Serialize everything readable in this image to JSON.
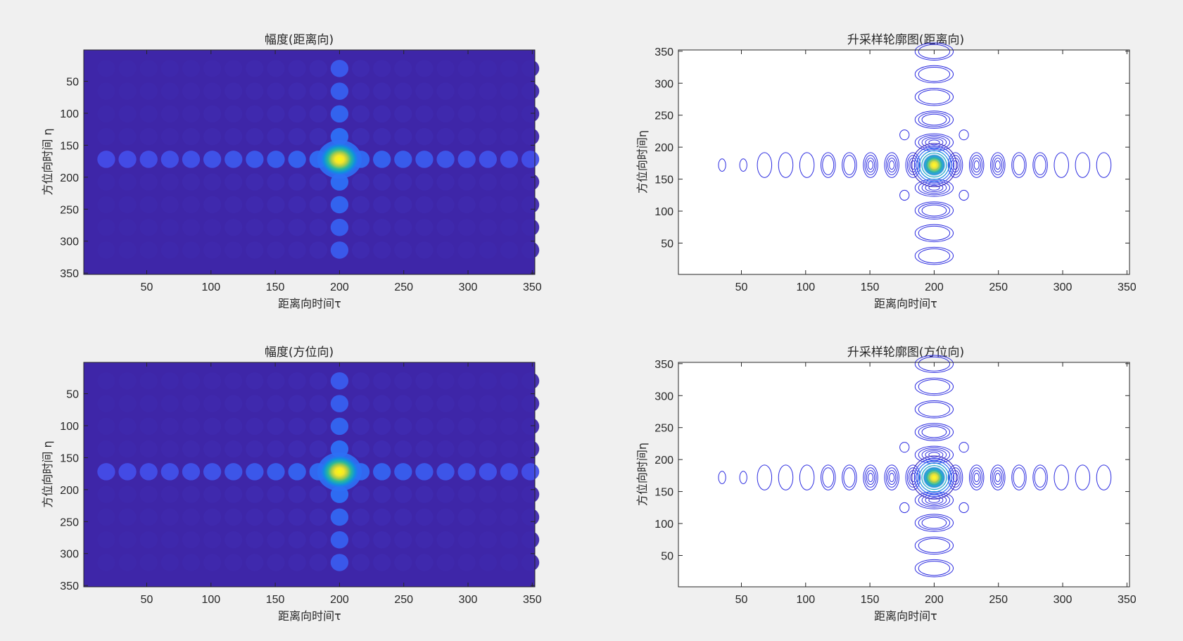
{
  "figure": {
    "background": "#f0f0f0",
    "colormap": "parula",
    "contour_color": "#2c2ce0"
  },
  "chart_data": [
    {
      "type": "heatmap",
      "title": "幅度(距离向)",
      "xlabel": "距离向时间τ",
      "ylabel": "方位向时间 η",
      "xlim": [
        1,
        352
      ],
      "ylim": [
        352,
        1
      ],
      "y_direction": "reverse",
      "xticks": [
        50,
        100,
        150,
        200,
        250,
        300,
        350
      ],
      "yticks": [
        50,
        100,
        150,
        200,
        250,
        300,
        350
      ],
      "grid": false,
      "peak": {
        "x": 200,
        "y": 172
      },
      "sidelobe_spacing": {
        "x": 16.5,
        "y": 35.5
      },
      "mainlobe_width": {
        "x": 10,
        "y": 16
      }
    },
    {
      "type": "contour",
      "title": "升采样轮廓图(距离向)",
      "xlabel": "距离向时间τ",
      "ylabel": "方位向时间η",
      "xlim": [
        1,
        352
      ],
      "ylim": [
        1,
        352
      ],
      "y_direction": "normal",
      "xticks": [
        50,
        100,
        150,
        200,
        250,
        300,
        350
      ],
      "yticks": [
        50,
        100,
        150,
        200,
        250,
        300,
        350
      ],
      "grid": false,
      "peak": {
        "x": 200,
        "y": 172
      },
      "sidelobe_spacing": {
        "x": 16.5,
        "y": 35.5
      },
      "mainlobe_width": {
        "x": 10,
        "y": 16
      }
    },
    {
      "type": "heatmap",
      "title": "幅度(方位向)",
      "xlabel": "距离向时间τ",
      "ylabel": "方位向时间 η",
      "xlim": [
        1,
        352
      ],
      "ylim": [
        352,
        1
      ],
      "y_direction": "reverse",
      "xticks": [
        50,
        100,
        150,
        200,
        250,
        300,
        350
      ],
      "yticks": [
        50,
        100,
        150,
        200,
        250,
        300,
        350
      ],
      "grid": false,
      "peak": {
        "x": 200,
        "y": 172
      },
      "sidelobe_spacing": {
        "x": 16.5,
        "y": 35.5
      },
      "mainlobe_width": {
        "x": 10,
        "y": 16
      }
    },
    {
      "type": "contour",
      "title": "升采样轮廓图(方位向)",
      "xlabel": "距离向时间τ",
      "ylabel": "方位向时间η",
      "xlim": [
        1,
        352
      ],
      "ylim": [
        1,
        352
      ],
      "y_direction": "normal",
      "xticks": [
        50,
        100,
        150,
        200,
        250,
        300,
        350
      ],
      "yticks": [
        50,
        100,
        150,
        200,
        250,
        300,
        350
      ],
      "grid": false,
      "peak": {
        "x": 200,
        "y": 172
      },
      "sidelobe_spacing": {
        "x": 16.5,
        "y": 35.5
      },
      "mainlobe_width": {
        "x": 10,
        "y": 16
      }
    }
  ]
}
